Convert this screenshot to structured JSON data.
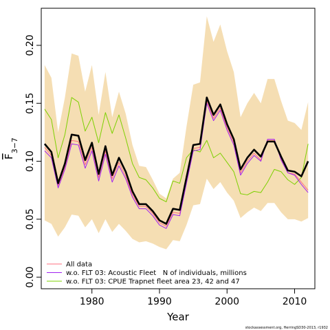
{
  "chart_data": {
    "type": "line",
    "xlabel": "Year",
    "ylabel": "F̄3−7",
    "ylabel_main": "F",
    "ylabel_sub": "3−7",
    "xlim": [
      1972.5,
      2013.0
    ],
    "ylim": [
      -0.01,
      0.232
    ],
    "x_ticks": [
      1980,
      1990,
      2000,
      2010
    ],
    "y_ticks": [
      0.0,
      0.05,
      0.1,
      0.15,
      0.2
    ],
    "y_tick_labels": [
      "0.00",
      "0.05",
      "0.10",
      "0.15",
      "0.20"
    ],
    "grid": false,
    "legend_position": "bottom-left",
    "years": [
      1973,
      1974,
      1975,
      1976,
      1977,
      1978,
      1979,
      1980,
      1981,
      1982,
      1983,
      1984,
      1985,
      1986,
      1987,
      1988,
      1989,
      1990,
      1991,
      1992,
      1993,
      1994,
      1995,
      1996,
      1997,
      1998,
      1999,
      2000,
      2001,
      2002,
      2003,
      2004,
      2005,
      2006,
      2007,
      2008,
      2009,
      2010,
      2011,
      2012
    ],
    "band": {
      "color": "#f5deb3",
      "upper": [
        0.183,
        0.172,
        0.125,
        0.155,
        0.193,
        0.191,
        0.16,
        0.183,
        0.14,
        0.177,
        0.138,
        0.16,
        0.141,
        0.114,
        0.096,
        0.095,
        0.084,
        0.072,
        0.068,
        0.085,
        0.09,
        0.13,
        0.166,
        0.168,
        0.225,
        0.203,
        0.218,
        0.195,
        0.177,
        0.138,
        0.15,
        0.159,
        0.15,
        0.171,
        0.171,
        0.152,
        0.135,
        0.133,
        0.127,
        0.151
      ],
      "lower": [
        0.049,
        0.046,
        0.035,
        0.043,
        0.054,
        0.053,
        0.043,
        0.05,
        0.038,
        0.05,
        0.039,
        0.046,
        0.04,
        0.033,
        0.03,
        0.031,
        0.029,
        0.026,
        0.024,
        0.032,
        0.031,
        0.045,
        0.062,
        0.063,
        0.085,
        0.076,
        0.082,
        0.073,
        0.066,
        0.051,
        0.056,
        0.06,
        0.057,
        0.064,
        0.064,
        0.056,
        0.05,
        0.05,
        0.048,
        0.051
      ]
    },
    "series": [
      {
        "color": "#000000",
        "values": [
          0.115,
          0.108,
          0.081,
          0.098,
          0.123,
          0.122,
          0.101,
          0.116,
          0.089,
          0.113,
          0.088,
          0.103,
          0.091,
          0.074,
          0.063,
          0.063,
          0.057,
          0.049,
          0.046,
          0.059,
          0.058,
          0.086,
          0.114,
          0.115,
          0.155,
          0.14,
          0.149,
          0.132,
          0.119,
          0.093,
          0.103,
          0.11,
          0.104,
          0.117,
          0.117,
          0.104,
          0.092,
          0.091,
          0.087,
          0.1
        ]
      },
      {
        "name": "All data",
        "color": "#ff6f7f",
        "values": [
          0.112,
          0.105,
          0.079,
          0.095,
          0.118,
          0.117,
          0.097,
          0.112,
          0.086,
          0.109,
          0.085,
          0.099,
          0.087,
          0.071,
          0.061,
          0.061,
          0.055,
          0.047,
          0.044,
          0.056,
          0.055,
          0.083,
          0.111,
          0.112,
          0.152,
          0.137,
          0.146,
          0.129,
          0.116,
          0.09,
          0.1,
          0.107,
          0.101,
          0.118,
          0.118,
          0.102,
          0.09,
          0.089,
          0.082,
          0.075
        ]
      },
      {
        "name": "w.o. FLT 03: Acoustic Fleet   N of individuals, millions",
        "color": "#a020f0",
        "values": [
          0.109,
          0.103,
          0.077,
          0.093,
          0.115,
          0.114,
          0.094,
          0.109,
          0.083,
          0.106,
          0.082,
          0.096,
          0.085,
          0.069,
          0.059,
          0.059,
          0.053,
          0.045,
          0.042,
          0.054,
          0.053,
          0.081,
          0.109,
          0.11,
          0.15,
          0.135,
          0.144,
          0.127,
          0.114,
          0.088,
          0.098,
          0.105,
          0.1,
          0.119,
          0.119,
          0.101,
          0.09,
          0.088,
          0.08,
          0.073
        ]
      },
      {
        "name": "w.o. FLT 03: CPUE Trapnet fleet area 23, 42 and 47",
        "color": "#7cd000",
        "values": [
          0.145,
          0.136,
          0.103,
          0.123,
          0.155,
          0.151,
          0.126,
          0.138,
          0.116,
          0.142,
          0.124,
          0.14,
          0.12,
          0.098,
          0.086,
          0.084,
          0.077,
          0.068,
          0.065,
          0.083,
          0.081,
          0.103,
          0.11,
          0.108,
          0.118,
          0.103,
          0.107,
          0.099,
          0.091,
          0.072,
          0.071,
          0.074,
          0.073,
          0.082,
          0.093,
          0.091,
          0.084,
          0.08,
          0.086,
          0.115
        ]
      }
    ]
  },
  "credit_text": "stockassessment.org, HerringSD30-2013, r1932"
}
